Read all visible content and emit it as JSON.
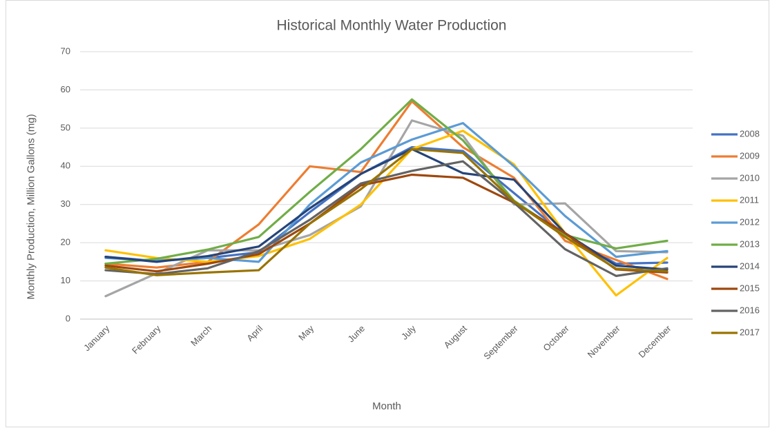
{
  "chart_data": {
    "type": "line",
    "title": "Historical Monthly Water Production",
    "x_label": "Month",
    "y_label": "Monthly Production, Million Gallons (mg)",
    "categories": [
      "January",
      "February",
      "March",
      "April",
      "May",
      "June",
      "July",
      "August",
      "September",
      "October",
      "November",
      "December"
    ],
    "series": [
      {
        "name": "2008",
        "color": "#4472c4",
        "values": [
          16.3,
          15.2,
          16,
          17.5,
          28,
          38,
          45,
          44,
          33,
          22,
          14.5,
          14.8
        ]
      },
      {
        "name": "2009",
        "color": "#ed7d31",
        "values": [
          14.5,
          13.5,
          15,
          24.8,
          40,
          38.5,
          57,
          45,
          37,
          20.5,
          15.5,
          10.5
        ]
      },
      {
        "name": "2010",
        "color": "#a5a5a5",
        "values": [
          6,
          12,
          18,
          18,
          22,
          29.5,
          52,
          48,
          30,
          30.3,
          17.8,
          17.5
        ]
      },
      {
        "name": "2011",
        "color": "#ffc000",
        "values": [
          18,
          16,
          15,
          16.5,
          21,
          30,
          44.5,
          49.3,
          40.5,
          22.5,
          6.2,
          16
        ]
      },
      {
        "name": "2012",
        "color": "#5b9bd5",
        "values": [
          16,
          15.3,
          16,
          15,
          30,
          41,
          47,
          51.3,
          40,
          27,
          16.3,
          17.8
        ]
      },
      {
        "name": "2013",
        "color": "#70ad47",
        "values": [
          14.5,
          15.8,
          18.2,
          21.5,
          33.3,
          44.5,
          57.5,
          46.8,
          31,
          22,
          18.5,
          20.5
        ]
      },
      {
        "name": "2014",
        "color": "#264478",
        "values": [
          16.3,
          15,
          16.5,
          19,
          29,
          38,
          44.5,
          38.2,
          36.5,
          22.5,
          14,
          13
        ]
      },
      {
        "name": "2015",
        "color": "#9e480e",
        "values": [
          14,
          12.5,
          14.5,
          17,
          25,
          35,
          37.8,
          37,
          30.5,
          22.5,
          13,
          12.2
        ]
      },
      {
        "name": "2016",
        "color": "#636363",
        "values": [
          12.8,
          11.8,
          13.3,
          17.8,
          26,
          35.5,
          38.8,
          41.3,
          30.5,
          18.3,
          11.3,
          13.3
        ]
      },
      {
        "name": "2017",
        "color": "#997300",
        "values": [
          13.5,
          11.5,
          12.2,
          12.8,
          25,
          34,
          44.5,
          43.5,
          30.8,
          21.5,
          13.2,
          12.5
        ]
      }
    ],
    "ylim": [
      0,
      70
    ],
    "yticks": [
      0,
      10,
      20,
      30,
      40,
      50,
      60,
      70
    ],
    "grid": true,
    "legend": "right"
  }
}
